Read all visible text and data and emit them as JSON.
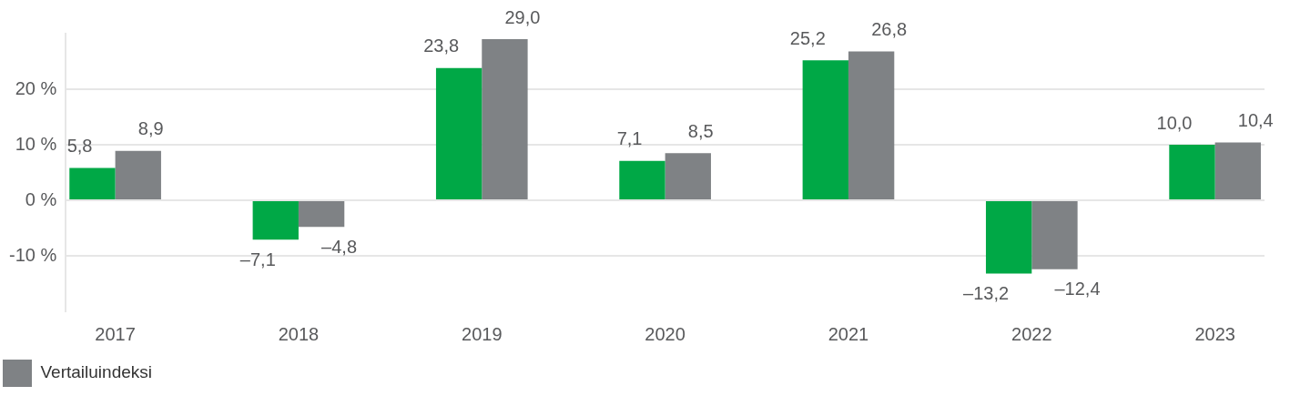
{
  "chart_data": {
    "type": "bar",
    "categories": [
      "2017",
      "2018",
      "2019",
      "2020",
      "2021",
      "2022",
      "2023"
    ],
    "series": [
      {
        "color": "#00a846",
        "values": [
          5.8,
          -7.1,
          23.8,
          7.1,
          25.2,
          -13.2,
          10.0
        ],
        "value_labels": [
          "5,8",
          "–7,1",
          "23,8",
          "7,1",
          "25,2",
          "–13,2",
          "10,0"
        ]
      },
      {
        "name": "Vertailuindeksi",
        "color": "#7f8285",
        "values": [
          8.9,
          -4.8,
          29.0,
          8.5,
          26.8,
          -12.4,
          10.4
        ],
        "value_labels": [
          "8,9",
          "–4,8",
          "29,0",
          "8,5",
          "26,8",
          "–12,4",
          "10,4"
        ]
      }
    ],
    "ylim": [
      -20,
      30
    ],
    "yticks": [
      {
        "value": -10,
        "label": "-10 %"
      },
      {
        "value": 0,
        "label": "0 %"
      },
      {
        "value": 10,
        "label": "10 %"
      },
      {
        "value": 20,
        "label": "20 %"
      }
    ],
    "grid": "y",
    "legend": "bottom left"
  }
}
